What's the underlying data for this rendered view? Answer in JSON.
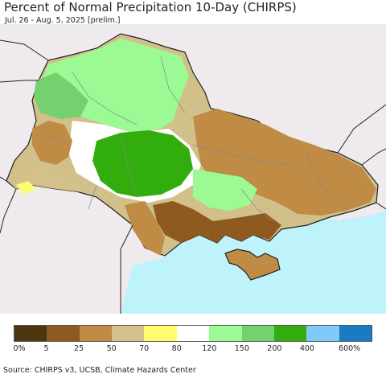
{
  "title": "Percent of Normal Precipitation 10-Day (CHIRPS)",
  "subtitle": "Jul. 26 - Aug. 5, 2025 [prelim.]",
  "source": "Source: CHIRPS v3, UCSB, Climate Hazards Center",
  "colors": {
    "sea": "#bff3fb",
    "outside": "#eeeaee",
    "border": "#222222"
  },
  "legend": {
    "colors": [
      "#4d3510",
      "#8e5a20",
      "#bf8b45",
      "#d3c08a",
      "#fffd6e",
      "#ffffff",
      "#9cfa95",
      "#73d16e",
      "#32ad0e",
      "#7fc9fb",
      "#1a7ac4"
    ],
    "labels": [
      "0%",
      "5",
      "25",
      "50",
      "70",
      "80",
      "120",
      "150",
      "200",
      "400",
      "600%"
    ]
  }
}
